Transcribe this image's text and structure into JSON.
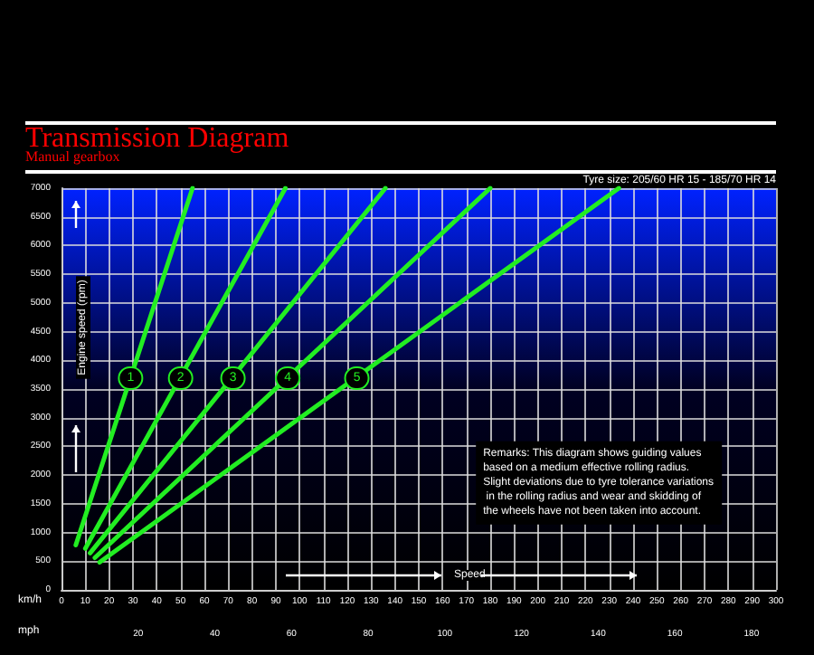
{
  "chart_data": {
    "type": "line",
    "title": "Transmission Diagram",
    "subtitle": "Manual gearbox",
    "xlabel": "Speed",
    "x2label": "mph",
    "ylabel": "Engine speed (rpm)",
    "annotations": [
      "Tyre size: 205/60 HR 15 - 185/70 HR 14",
      "Remarks: This diagram shows guiding values based on a medium effective rolling radius. Slight deviations due to tyre tolerance variations in the rolling radius and wear and skidding of the wheels have not been taken into account.",
      "km/h",
      {
        "text": "1",
        "x": 29,
        "y": 3690
      },
      {
        "text": "2",
        "x": 50,
        "y": 3690
      },
      {
        "text": "3",
        "x": 72,
        "y": 3690
      },
      {
        "text": "4",
        "x": 95,
        "y": 3690
      },
      {
        "text": "5",
        "x": 124,
        "y": 3690
      }
    ],
    "series": [
      {
        "color": "#22ee22",
        "x": [
          6,
          55
        ],
        "values": [
          780,
          7000
        ]
      },
      {
        "color": "#22ee22",
        "x": [
          10,
          94
        ],
        "values": [
          720,
          7000
        ]
      },
      {
        "color": "#22ee22",
        "x": [
          12,
          136
        ],
        "values": [
          640,
          7000
        ]
      },
      {
        "color": "#22ee22",
        "x": [
          14,
          180
        ],
        "values": [
          560,
          7000
        ]
      },
      {
        "color": "#22ee22",
        "x": [
          16,
          234
        ],
        "values": [
          480,
          7000
        ]
      }
    ],
    "xlim": [
      0,
      300
    ],
    "xticks": [
      0,
      10,
      20,
      30,
      40,
      50,
      60,
      70,
      80,
      90,
      100,
      110,
      120,
      130,
      140,
      150,
      160,
      170,
      180,
      190,
      200,
      210,
      220,
      230,
      240,
      250,
      260,
      270,
      280,
      290,
      300
    ],
    "x2lim": [
      0,
      186.4
    ],
    "x2ticks": [
      20,
      40,
      60,
      80,
      100,
      120,
      140,
      160,
      180
    ],
    "ylim": [
      0,
      7000
    ],
    "yticks": [
      0,
      500,
      1000,
      1500,
      2000,
      2500,
      3000,
      3500,
      4000,
      4500,
      5000,
      5500,
      6000,
      6500,
      7000
    ],
    "grid": true,
    "marker": "none",
    "line_style": "solid"
  }
}
